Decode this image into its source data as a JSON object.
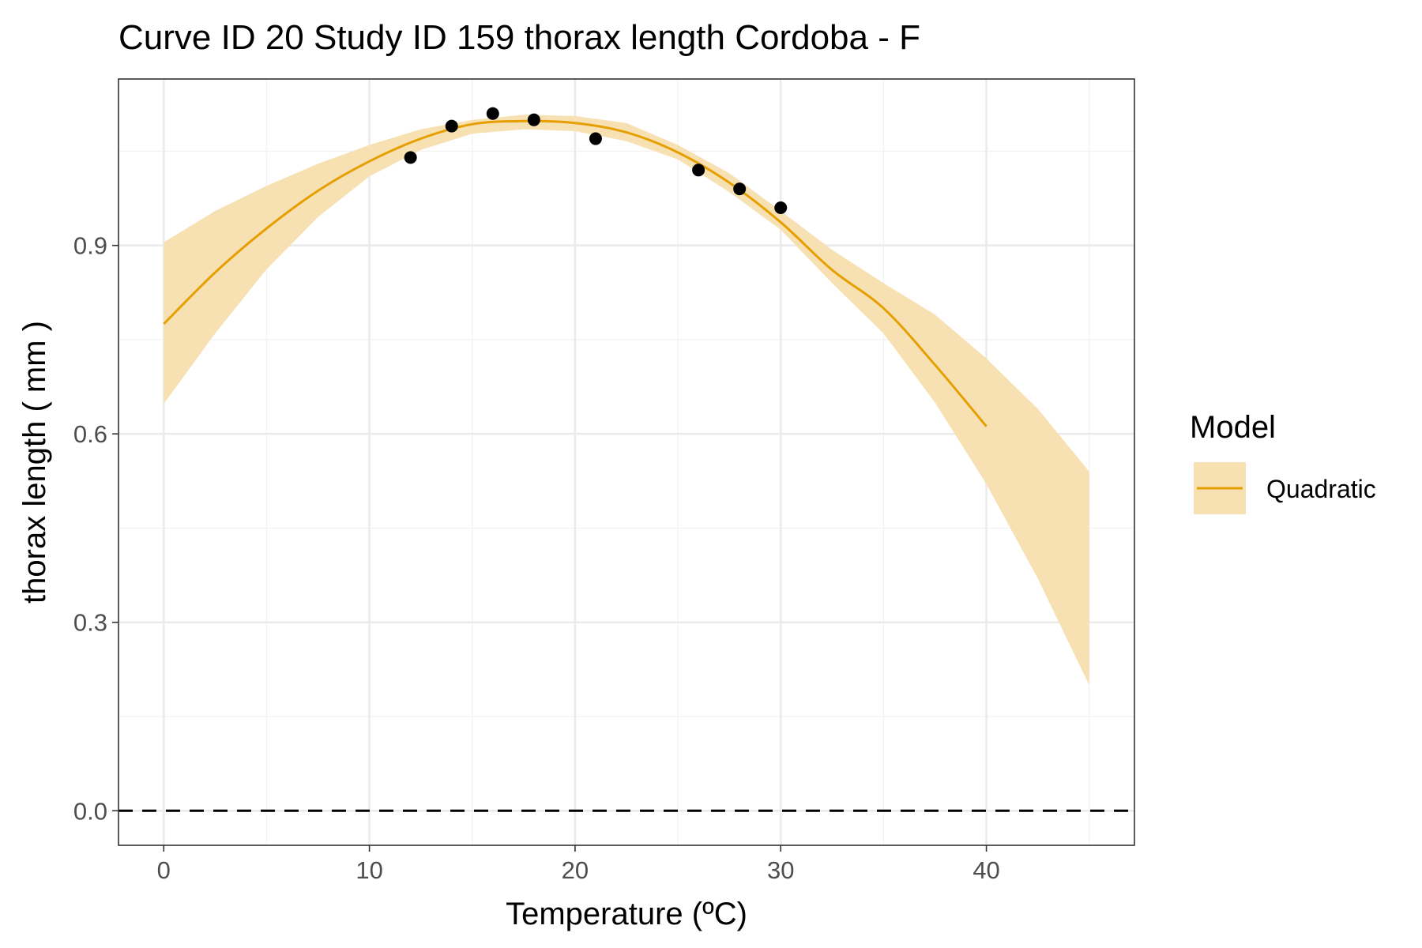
{
  "chart_data": {
    "type": "line",
    "title": "Curve ID 20 Study ID 159 thorax length Cordoba - F",
    "xlabel": "Temperature (ºC)",
    "ylabel": "thorax length ( mm )",
    "xlim": [
      -2.2,
      47.2
    ],
    "ylim": [
      -0.055,
      1.165
    ],
    "x_ticks": [
      0,
      10,
      20,
      30,
      40
    ],
    "x_tick_labels": [
      "0",
      "10",
      "20",
      "30",
      "40"
    ],
    "y_ticks": [
      0.0,
      0.3,
      0.6,
      0.9
    ],
    "y_tick_labels": [
      "0.0",
      "0.3",
      "0.6",
      "0.9"
    ],
    "grid": true,
    "reference_line": {
      "y": 0.0,
      "style": "dashed"
    },
    "legend": {
      "title": "Model",
      "placement": "right",
      "entries": [
        {
          "label": "Quadratic",
          "color": "#E69F00"
        }
      ]
    },
    "points": {
      "x": [
        12,
        14,
        16,
        18,
        21,
        26,
        28,
        30
      ],
      "y": [
        1.04,
        1.09,
        1.11,
        1.1,
        1.07,
        1.02,
        0.99,
        0.96
      ]
    },
    "series": [
      {
        "name": "Quadratic",
        "x": [
          0,
          2.5,
          5,
          7.5,
          10,
          12.5,
          15,
          17.5,
          20,
          22.5,
          25,
          27.5,
          30,
          32.5,
          35,
          37.5,
          40
        ],
        "y": [
          0.775,
          0.857,
          0.927,
          0.987,
          1.034,
          1.07,
          1.093,
          1.098,
          1.095,
          1.08,
          1.048,
          1.0,
          0.937,
          0.861,
          0.8,
          0.71,
          0.612
        ]
      }
    ],
    "confidence_band": {
      "x": [
        0,
        2.5,
        5,
        7.5,
        10,
        12.5,
        15,
        17.5,
        20,
        22.5,
        25,
        27.5,
        30,
        32.5,
        35,
        37.5,
        40,
        42.5,
        45
      ],
      "lower": [
        0.648,
        0.76,
        0.862,
        0.945,
        1.01,
        1.052,
        1.078,
        1.085,
        1.082,
        1.066,
        1.037,
        0.985,
        0.925,
        0.84,
        0.76,
        0.65,
        0.52,
        0.37,
        0.2
      ],
      "upper": [
        0.905,
        0.955,
        0.995,
        1.03,
        1.06,
        1.085,
        1.1,
        1.108,
        1.106,
        1.095,
        1.06,
        1.015,
        0.955,
        0.893,
        0.84,
        0.79,
        0.72,
        0.64,
        0.54
      ]
    },
    "colors": {
      "line": "#E69F00",
      "band": "#F7E1B3",
      "points": "#000000",
      "grid_major": "#EBEBEB",
      "grid_minor": "#F2F2F2",
      "panel_border": "#333333"
    }
  }
}
